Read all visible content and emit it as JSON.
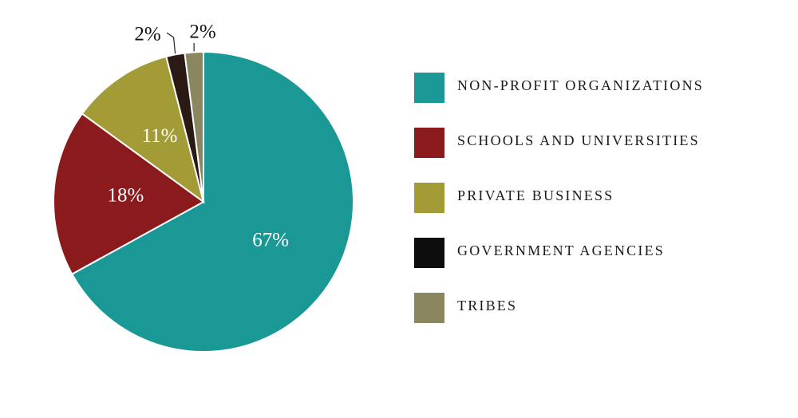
{
  "chart_data": {
    "type": "pie",
    "categories": [
      "NON-PROFIT ORGANIZATIONS",
      "SCHOOLS AND UNIVERSITIES",
      "PRIVATE BUSINESS",
      "GOVERNMENT AGENCIES",
      "TRIBES"
    ],
    "values": [
      67,
      18,
      11,
      2,
      2
    ],
    "value_labels": [
      "67%",
      "18%",
      "11%",
      "2%",
      "2%"
    ],
    "colors": [
      "#1a9896",
      "#8b1a1c",
      "#a39b35",
      "#2b1a14",
      "#8a8660"
    ],
    "legend_colors": [
      "#1a9896",
      "#8b1a1c",
      "#a39b35",
      "#0d0d0d",
      "#8a8660"
    ]
  }
}
